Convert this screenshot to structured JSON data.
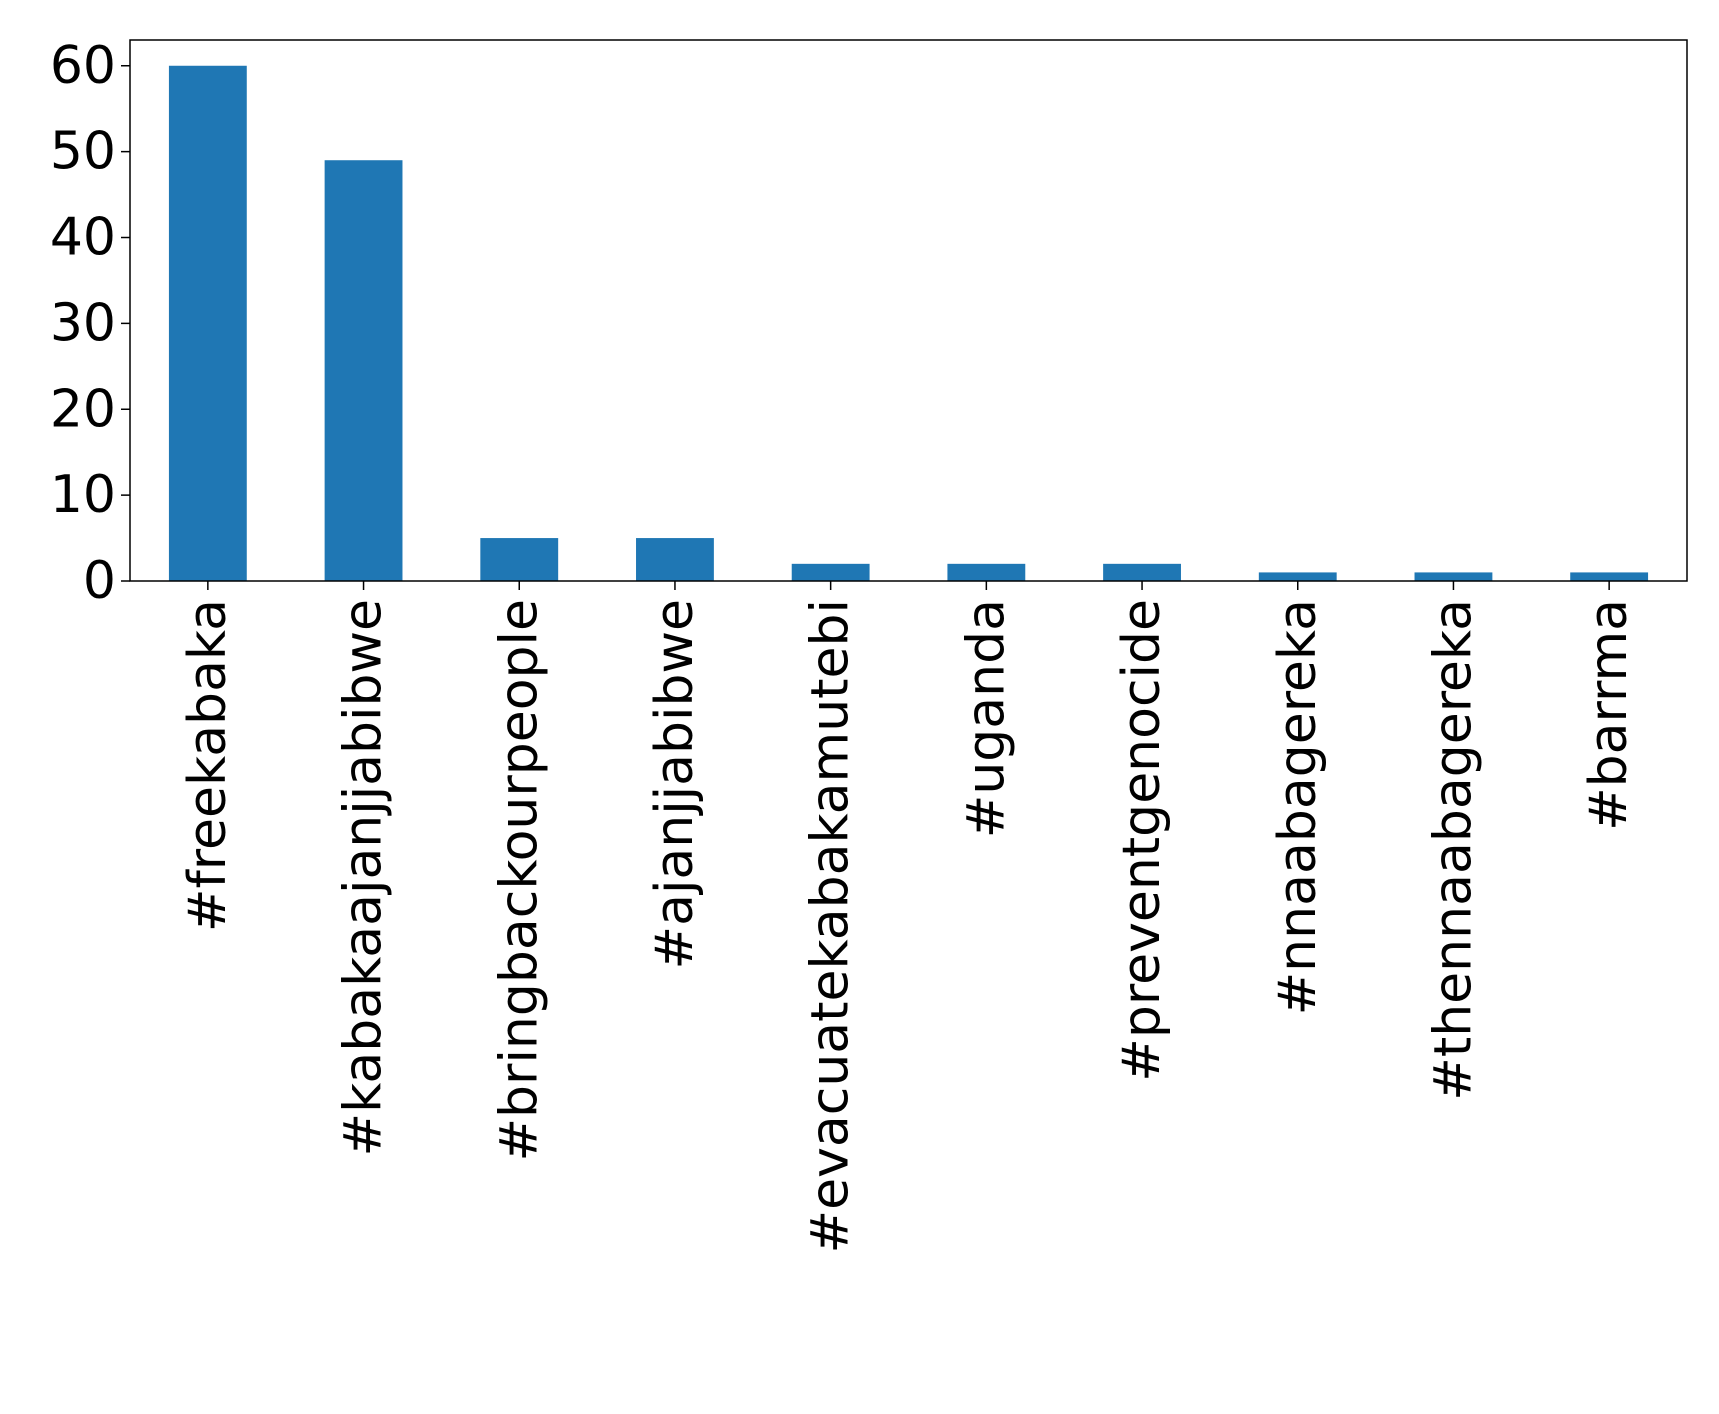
{
  "chart_data": {
    "type": "bar",
    "title": "",
    "xlabel": "",
    "ylabel": "",
    "categories": [
      "#freekabaka",
      "#kabakaajanjjabibwe",
      "#bringbackourpeople",
      "#ajanjjabibwe",
      "#evacuatekabakamutebi",
      "#uganda",
      "#preventgenocide",
      "#nnaabagereka",
      "#thennaabagereka",
      "#barrma"
    ],
    "values": [
      60,
      49,
      5,
      5,
      2,
      2,
      2,
      1,
      1,
      1
    ],
    "ylim": [
      0,
      63
    ],
    "yticks": [
      0,
      10,
      20,
      30,
      40,
      50,
      60
    ],
    "grid": false,
    "legend": "none",
    "bar_color": "#1f77b4"
  }
}
